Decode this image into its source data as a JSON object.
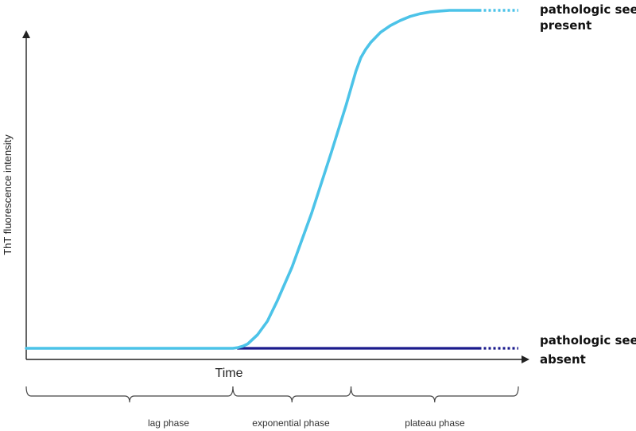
{
  "chart_data": {
    "type": "line",
    "title": "",
    "xlabel": "Time",
    "ylabel": "ThT fluorescence intensity",
    "xlim": [
      0,
      100
    ],
    "ylim": [
      0,
      100
    ],
    "grid": false,
    "axis_ticks": false,
    "series": [
      {
        "name": "pathologic seed present",
        "color": "#4CC3E8",
        "x": [
          0,
          10,
          20,
          30,
          40,
          42,
          43,
          44,
          45,
          47,
          49,
          51,
          54,
          58,
          62,
          65,
          67,
          68,
          69,
          70,
          72,
          74,
          76,
          78,
          80,
          82,
          84,
          86,
          88,
          90,
          92
        ],
        "y": [
          0,
          0,
          0,
          0,
          0,
          0,
          0.2,
          0.6,
          1.3,
          4,
          8,
          14,
          24,
          40,
          58,
          72,
          82,
          86,
          88.5,
          90.5,
          93.5,
          95.5,
          97,
          98.2,
          99,
          99.5,
          99.8,
          100,
          100,
          100,
          100
        ],
        "extension": {
          "from_x": 92,
          "to_x": 100,
          "style": "dotted"
        }
      },
      {
        "name": "pathologic seed absent",
        "color": "#1A1A8C",
        "x": [
          43,
          92
        ],
        "y": [
          0,
          0
        ],
        "extension": {
          "from_x": 92,
          "to_x": 100,
          "style": "dotted"
        }
      }
    ],
    "phases": [
      {
        "label": "lag phase",
        "x_range": [
          0,
          42
        ]
      },
      {
        "label": "exponential phase",
        "x_range": [
          42,
          66
        ]
      },
      {
        "label": "plateau phase",
        "x_range": [
          66,
          100
        ]
      }
    ],
    "labels": {
      "present": [
        "pathologic seed",
        "present"
      ],
      "absent": [
        "pathologic seed",
        "absent"
      ]
    }
  }
}
